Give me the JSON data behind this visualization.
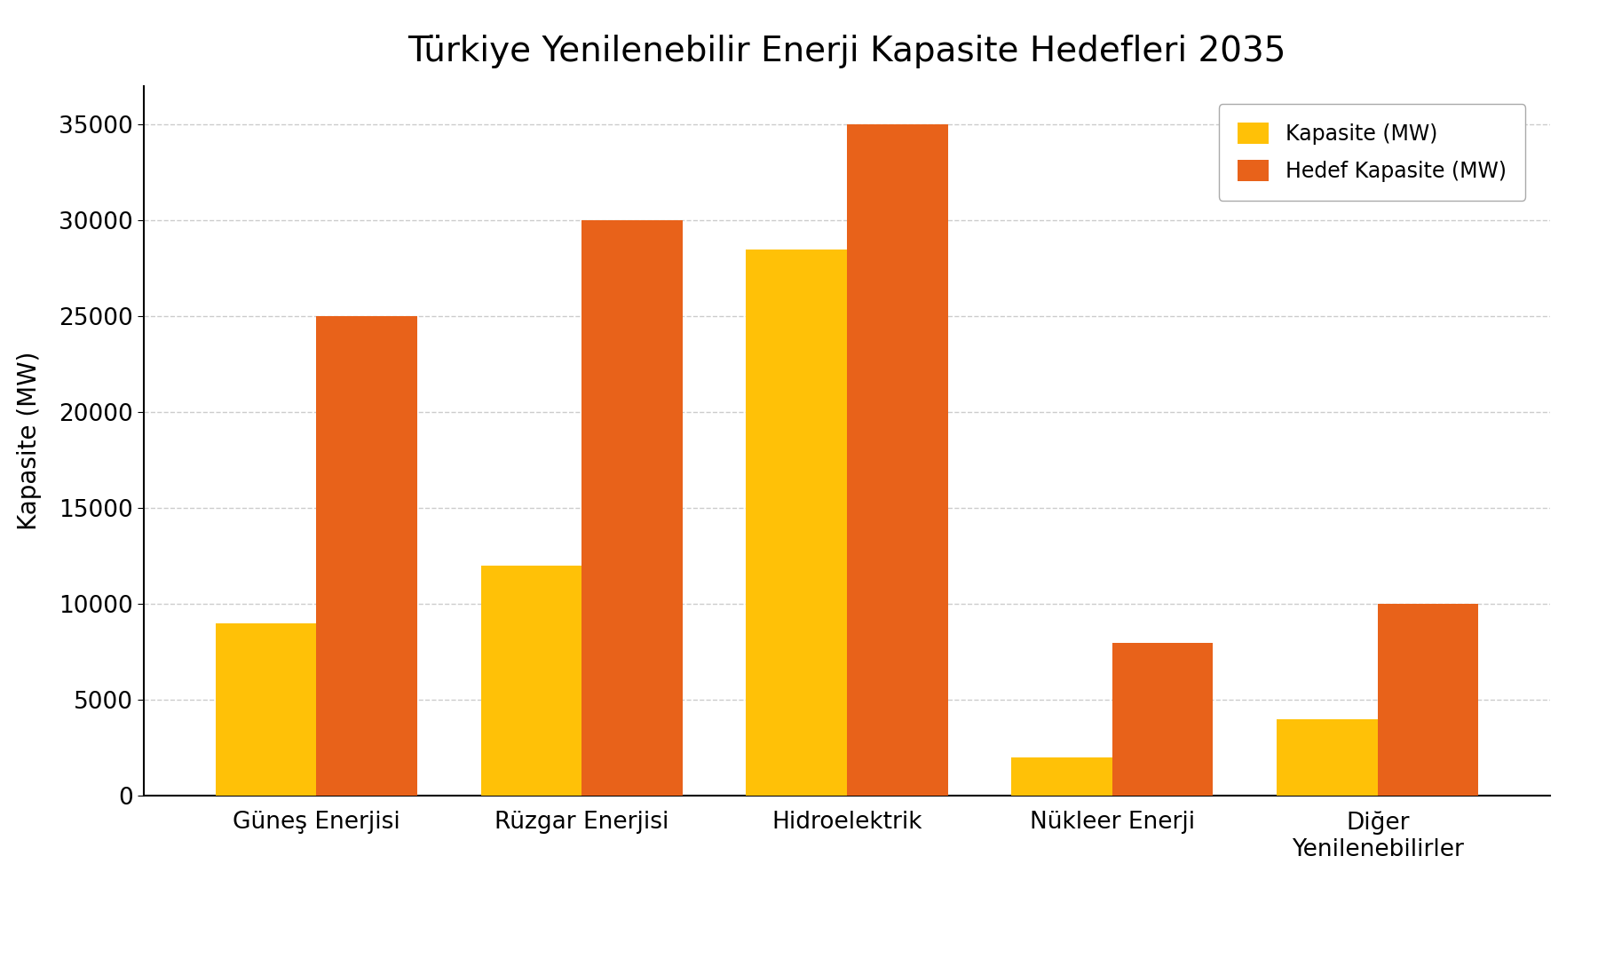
{
  "title": "Türkiye Yenilenebilir Enerji Kapasite Hedefleri 2035",
  "categories": [
    "Güneş Enerjisi",
    "Rüzgar Enerjisi",
    "Hidroelektrik",
    "Nükleer Enerji",
    "Diğer\nYenilenebilirler"
  ],
  "kapasite": [
    9000,
    12000,
    28500,
    2000,
    4000
  ],
  "hedef_kapasite": [
    25000,
    30000,
    35000,
    8000,
    10000
  ],
  "bar_color_kapasite": "#FFC107",
  "bar_color_hedef": "#E8621A",
  "ylabel": "Kapasite (MW)",
  "xlabel": "",
  "ylim": [
    0,
    37000
  ],
  "yticks": [
    0,
    5000,
    10000,
    15000,
    20000,
    25000,
    30000,
    35000
  ],
  "legend_kapasite": "Kapasite (MW)",
  "legend_hedef": "Hedef Kapasite (MW)",
  "title_fontsize": 28,
  "axis_fontsize": 20,
  "tick_fontsize": 19,
  "legend_fontsize": 17,
  "background_color": "#FFFFFF",
  "grid_color": "#CCCCCC",
  "bar_width": 0.38,
  "spine_color": "#000000"
}
